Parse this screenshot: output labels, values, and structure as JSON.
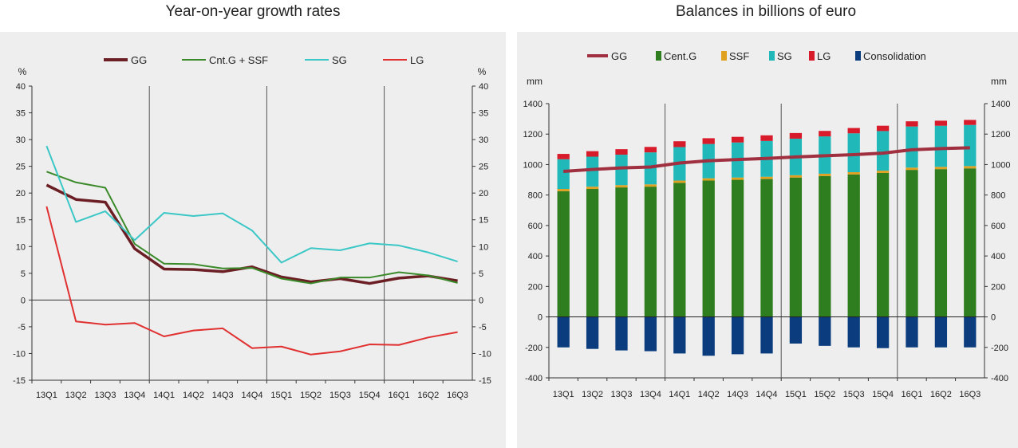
{
  "chart_data": [
    {
      "type": "line",
      "title": "Year-on-year growth rates",
      "ylabel": "%",
      "ylabel_right": "%",
      "ylim": [
        -15,
        40
      ],
      "yticks": [
        -15,
        -10,
        -5,
        0,
        5,
        10,
        15,
        20,
        25,
        30,
        35,
        40
      ],
      "grid": false,
      "legend": "top",
      "categories": [
        "13Q1",
        "13Q2",
        "13Q3",
        "13Q4",
        "14Q1",
        "14Q2",
        "14Q3",
        "14Q4",
        "15Q1",
        "15Q2",
        "15Q3",
        "15Q4",
        "16Q1",
        "16Q2",
        "16Q3"
      ],
      "series": [
        {
          "name": "GG",
          "color": "#6b1f24",
          "values": [
            21.5,
            18.8,
            18.3,
            9.6,
            5.8,
            5.7,
            5.3,
            6.2,
            4.3,
            3.4,
            4.0,
            3.1,
            4.1,
            4.5,
            3.6
          ]
        },
        {
          "name": "Cnt.G + SSF",
          "color": "#3a8a2a",
          "values": [
            24.0,
            22.0,
            21.0,
            10.5,
            6.8,
            6.7,
            5.9,
            6.0,
            4.0,
            3.1,
            4.2,
            4.2,
            5.2,
            4.6,
            3.2
          ]
        },
        {
          "name": "SG",
          "color": "#3cc7c7",
          "values": [
            28.8,
            14.6,
            16.6,
            11.2,
            16.3,
            15.7,
            16.2,
            13.0,
            7.0,
            9.7,
            9.3,
            10.6,
            10.2,
            8.9,
            7.2
          ]
        },
        {
          "name": "LG",
          "color": "#e03030",
          "values": [
            17.5,
            -4.0,
            -4.6,
            -4.3,
            -6.8,
            -5.7,
            -5.3,
            -9.0,
            -8.7,
            -10.2,
            -9.6,
            -8.3,
            -8.4,
            -7.0,
            -6.0
          ]
        }
      ]
    },
    {
      "type": "bar",
      "title": "Balances in billions of euro",
      "ylabel": "mm",
      "ylabel_right": "mm",
      "ylim": [
        -400,
        1400
      ],
      "yticks": [
        -400,
        -200,
        0,
        200,
        400,
        600,
        800,
        1000,
        1200,
        1400
      ],
      "grid": false,
      "legend": "top",
      "categories": [
        "13Q1",
        "13Q2",
        "13Q3",
        "13Q4",
        "14Q1",
        "14Q2",
        "14Q3",
        "14Q4",
        "15Q1",
        "15Q2",
        "15Q3",
        "15Q4",
        "16Q1",
        "16Q2",
        "16Q3"
      ],
      "series": [
        {
          "name": "GG",
          "type": "line",
          "color": "#a03040",
          "values": [
            955,
            968,
            978,
            984,
            1010,
            1025,
            1033,
            1040,
            1050,
            1058,
            1065,
            1075,
            1097,
            1105,
            1110
          ]
        },
        {
          "name": "Cent.G",
          "color": "#2e7d1e",
          "values": [
            825,
            840,
            850,
            855,
            880,
            895,
            900,
            905,
            915,
            925,
            935,
            945,
            965,
            970,
            975
          ]
        },
        {
          "name": "SSF",
          "color": "#e0a020",
          "values": [
            15,
            15,
            15,
            15,
            15,
            15,
            15,
            15,
            15,
            15,
            15,
            15,
            15,
            15,
            15
          ]
        },
        {
          "name": "SG",
          "color": "#20b8b8",
          "values": [
            195,
            197,
            200,
            210,
            220,
            225,
            230,
            235,
            240,
            245,
            255,
            260,
            270,
            270,
            270
          ]
        },
        {
          "name": "LG",
          "color": "#d81b2a",
          "values": [
            35,
            36,
            36,
            36,
            38,
            38,
            37,
            37,
            37,
            36,
            35,
            35,
            34,
            33,
            33
          ]
        },
        {
          "name": "Consolidation",
          "color": "#0b3d7e",
          "values": [
            -200,
            -210,
            -220,
            -225,
            -240,
            -255,
            -245,
            -240,
            -175,
            -190,
            -200,
            -205,
            -200,
            -200,
            -200
          ]
        }
      ]
    }
  ]
}
